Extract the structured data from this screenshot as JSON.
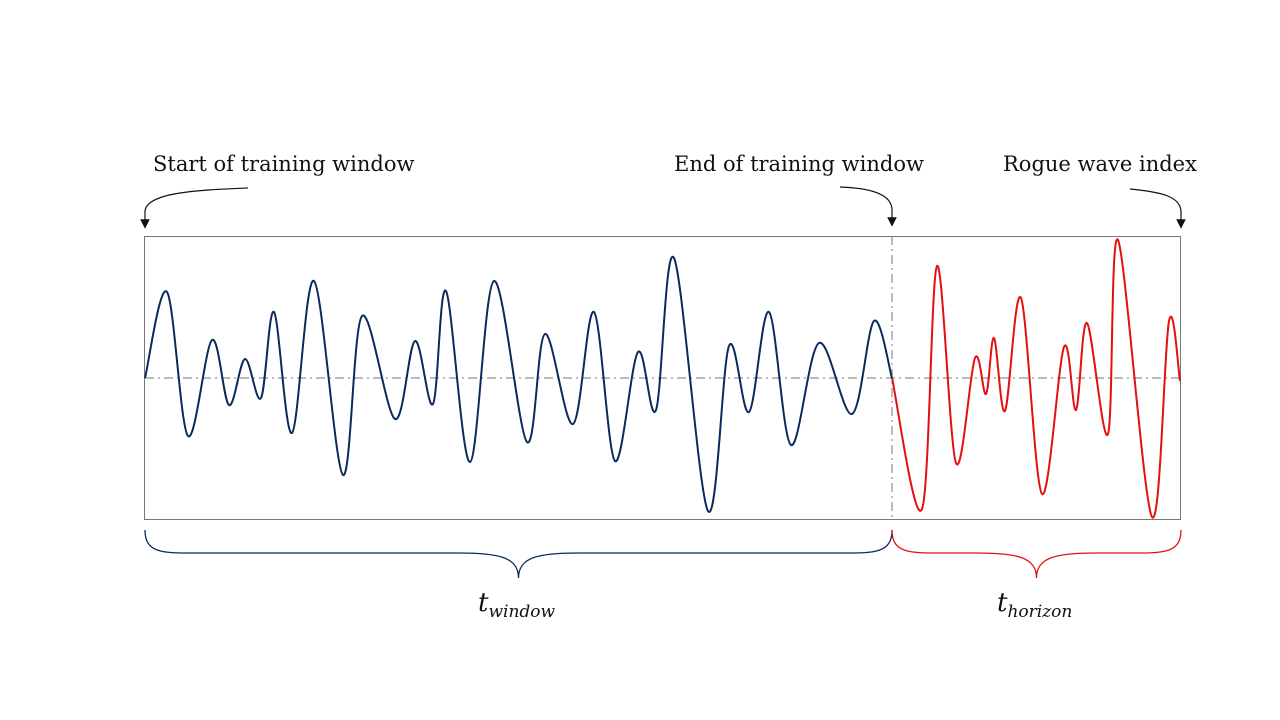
{
  "labels": {
    "start": "Start of training window",
    "end": "End of training window",
    "rogue": "Rogue wave index"
  },
  "braces": {
    "window": {
      "base": "t",
      "sub": "window"
    },
    "horizon": {
      "base": "t",
      "sub": "horizon"
    }
  },
  "colors": {
    "window_signal": "#0b2a5c",
    "horizon_signal": "#e31010",
    "frame": "#777777",
    "text": "#111111"
  }
}
